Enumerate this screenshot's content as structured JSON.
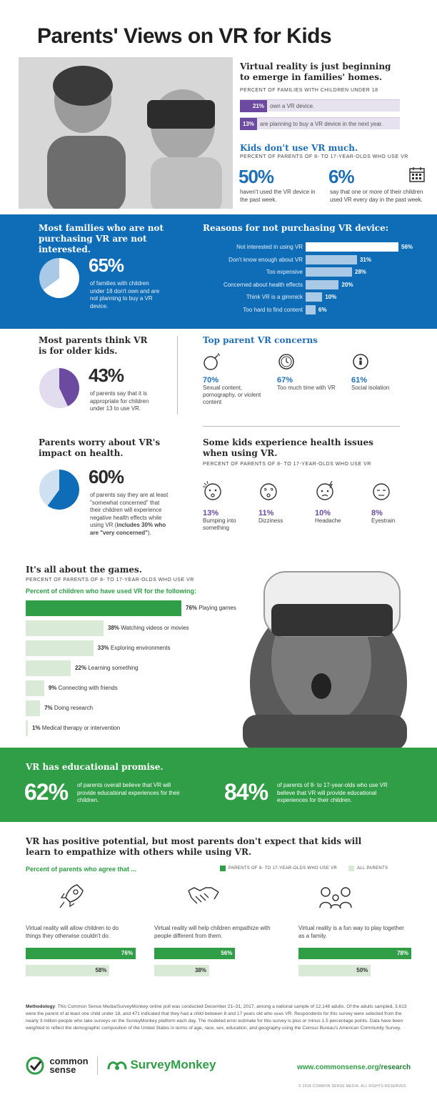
{
  "title": "Parents' Views on VR for Kids",
  "families": {
    "heading": "Virtual reality is just beginning to emerge in families' homes.",
    "subhead": "PERCENT OF FAMILIES WITH CHILDREN UNDER 18",
    "bars": [
      {
        "pct": "21%",
        "label": "own a VR device.",
        "value": 21
      },
      {
        "pct": "13%",
        "label": "are planning to buy a VR device in the next year.",
        "value": 13
      }
    ]
  },
  "kids_use": {
    "heading": "Kids don't use VR much.",
    "subhead": "PERCENT OF PARENTS OF 8- TO 17-YEAR-OLDS WHO USE VR",
    "stat1": {
      "pct": "50%",
      "label": "haven't used the VR device in the past week."
    },
    "stat2": {
      "pct": "6%",
      "label": "say that one or more of their children used VR every day in the past week."
    }
  },
  "not_interested": {
    "heading": "Most families who are not purchasing VR are not interested.",
    "pct": "65%",
    "label": "of families with children under 18 don't own and are not planning to buy a VR device."
  },
  "reasons": {
    "heading": "Reasons for not purchasing VR device:"
  },
  "older_kids": {
    "heading": "Most parents think VR is for older kids.",
    "pct": "43%",
    "label": "of parents say that it is appropriate for children under 13 to use VR."
  },
  "concerns": {
    "heading": "Top parent VR concerns",
    "items": [
      {
        "pct": "70%",
        "label": "Sexual content, pornography, or violent content",
        "icon": "bomb-icon"
      },
      {
        "pct": "67%",
        "label": "Too much time with VR",
        "icon": "clock-icon"
      },
      {
        "pct": "61%",
        "label": "Social isolation",
        "icon": "person-icon"
      }
    ]
  },
  "health_worry": {
    "heading": "Parents worry about VR's impact on health.",
    "pct": "60%",
    "label_a": "of parents say they are at least \"somewhat concerned\" that their children will experience negative health effects while using VR (",
    "label_b": "includes 30% who are \"very concerned\"",
    "label_c": ")."
  },
  "health_issues": {
    "heading": "Some kids experience health issues when using VR.",
    "subhead": "PERCENT OF PARENTS OF 8- TO 17-YEAR-OLDS WHO USE VR",
    "items": [
      {
        "pct": "13%",
        "label": "Bumping into something",
        "icon": "bump-face-icon"
      },
      {
        "pct": "11%",
        "label": "Dizziness",
        "icon": "dizzy-face-icon"
      },
      {
        "pct": "10%",
        "label": "Headache",
        "icon": "headache-face-icon"
      },
      {
        "pct": "8%",
        "label": "Eyestrain",
        "icon": "eyestrain-face-icon"
      }
    ]
  },
  "games": {
    "heading": "It's all about the games.",
    "subhead": "PERCENT OF PARENTS OF 8- TO 17-YEAR-OLDS WHO USE VR",
    "caption": "Percent of children who have used VR for the following:"
  },
  "educational": {
    "heading": "VR has educational promise.",
    "stat1": {
      "pct": "62%",
      "label": "of parents overall believe that VR will provide educational experiences for their children."
    },
    "stat2": {
      "pct": "84%",
      "label": "of parents of 8- to 17-year-olds who use VR believe that VR will provide educational experiences for their children."
    }
  },
  "potential": {
    "heading": "VR has positive potential, but most parents don't expect that kids will learn to empathize with others while using VR.",
    "caption": "Percent of parents who agree that ...",
    "legend_dark": "PARENTS OF 8- TO 17-YEAR-OLDS WHO USE VR",
    "legend_light": "ALL PARENTS",
    "items": [
      {
        "label": "Virtual reality will allow children to do things they otherwise couldn't do.",
        "icon": "rocket-icon"
      },
      {
        "label": "Virtual reality will help children empathize with people different from them.",
        "icon": "handshake-icon"
      },
      {
        "label": "Virtual reality is a fun way to play together as a family.",
        "icon": "family-icon"
      }
    ]
  },
  "methodology": {
    "label": "Methodology",
    "text": ": This Common Sense Media/SurveyMonkey online poll was conducted December 21–31, 2017, among a national sample of 12,148 adults. Of the adults sampled, 3,613 were the parent of at least one child under 18, and 471 indicated that they had a child between 8 and 17 years old who uses VR. Respondents for this survey were selected from the nearly 3 million people who take surveys on the SurveyMonkey platform each day. The modeled error estimate for this survey is plus or minus 1.5 percentage points. Data have been weighted to reflect the demographic composition of the United States in terms of age, race, sex, education, and geography using the Census Bureau's American Community Survey."
  },
  "footer": {
    "logo1_line1": "common",
    "logo1_line2": "sense",
    "logo2": "SurveyMonkey",
    "url_a": "www.commonsense.org/",
    "url_b": "research",
    "copyright": "© 2018 COMMON SENSE MEDIA. ALL RIGHTS RESERVED."
  },
  "colors": {
    "purple": "#6b4aa0",
    "blue": "#0f6db8",
    "green": "#2f9e46",
    "light_green": "#d9ead6",
    "light_blue": "#a9c9e6"
  },
  "chart_data": [
    {
      "type": "bar",
      "title": "Reasons for not purchasing VR device:",
      "categories": [
        "Not interested in using VR",
        "Don't know enough about VR",
        "Too expensive",
        "Concerned about health effects",
        "Think VR is a gimmick",
        "Too hard to find content"
      ],
      "values": [
        56,
        31,
        28,
        20,
        10,
        6
      ],
      "labels": [
        "56%",
        "31%",
        "28%",
        "20%",
        "10%",
        "6%"
      ],
      "orientation": "horizontal",
      "xlim": [
        0,
        56
      ]
    },
    {
      "type": "bar",
      "title": "Percent of children who have used VR for the following:",
      "categories": [
        "Playing games",
        "Watching videos or movies",
        "Exploring environments",
        "Learning something",
        "Connecting with friends",
        "Doing research",
        "Medical therapy or intervention"
      ],
      "values": [
        76,
        38,
        33,
        22,
        9,
        7,
        1
      ],
      "labels": [
        "76%",
        "38%",
        "33%",
        "22%",
        "9%",
        "7%",
        "1%"
      ],
      "orientation": "horizontal",
      "xlim": [
        0,
        76
      ]
    },
    {
      "type": "bar",
      "title": "Percent of parents who agree that ...",
      "categories": [
        "Virtual reality will allow children to do things they otherwise couldn't do.",
        "Virtual reality will help children empathize with people different from them.",
        "Virtual reality is a fun way to play together as a family."
      ],
      "series": [
        {
          "name": "PARENTS OF 8- TO 17-YEAR-OLDS WHO USE VR",
          "values": [
            76,
            56,
            78
          ],
          "labels": [
            "76%",
            "56%",
            "78%"
          ]
        },
        {
          "name": "ALL PARENTS",
          "values": [
            58,
            38,
            50
          ],
          "labels": [
            "58%",
            "38%",
            "50%"
          ]
        }
      ],
      "orientation": "horizontal",
      "xlim": [
        0,
        78
      ]
    },
    {
      "type": "pie",
      "values": [
        65,
        35
      ],
      "pct_label": "65%"
    },
    {
      "type": "pie",
      "values": [
        43,
        57
      ],
      "pct_label": "43%"
    },
    {
      "type": "pie",
      "values": [
        60,
        40
      ],
      "pct_label": "60%"
    }
  ]
}
